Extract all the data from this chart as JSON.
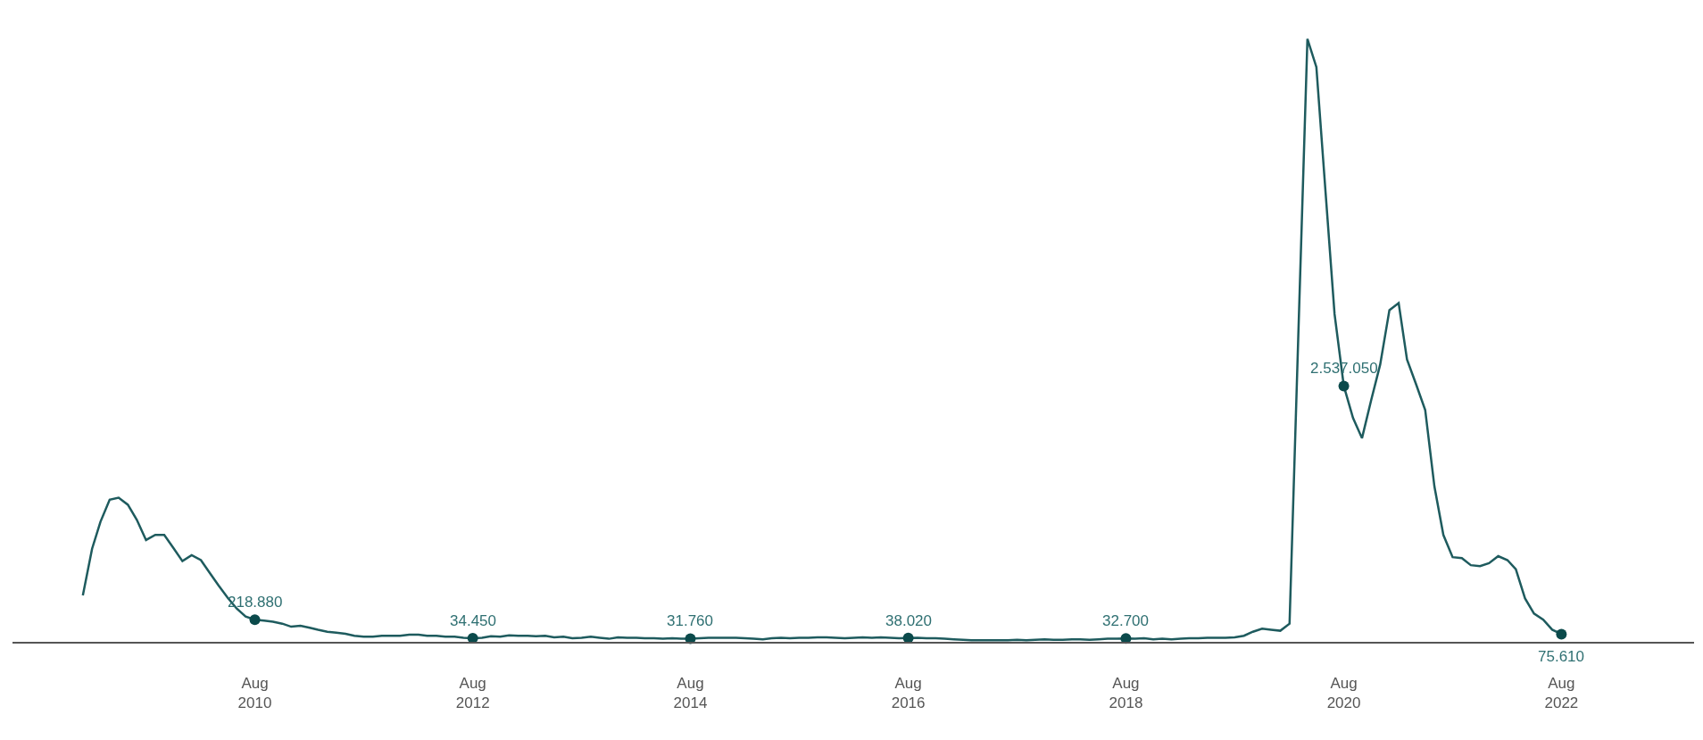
{
  "chart_data": {
    "type": "line",
    "x": [
      "2009-01",
      "2009-02",
      "2009-03",
      "2009-04",
      "2009-05",
      "2009-06",
      "2009-07",
      "2009-08",
      "2009-09",
      "2009-10",
      "2009-11",
      "2009-12",
      "2010-01",
      "2010-02",
      "2010-03",
      "2010-04",
      "2010-05",
      "2010-06",
      "2010-07",
      "2010-08",
      "2010-09",
      "2010-10",
      "2010-11",
      "2010-12",
      "2011-01",
      "2011-02",
      "2011-03",
      "2011-04",
      "2011-05",
      "2011-06",
      "2011-07",
      "2011-08",
      "2011-09",
      "2011-10",
      "2011-11",
      "2011-12",
      "2012-01",
      "2012-02",
      "2012-03",
      "2012-04",
      "2012-05",
      "2012-06",
      "2012-07",
      "2012-08",
      "2012-09",
      "2012-10",
      "2012-11",
      "2012-12",
      "2013-01",
      "2013-02",
      "2013-03",
      "2013-04",
      "2013-05",
      "2013-06",
      "2013-07",
      "2013-08",
      "2013-09",
      "2013-10",
      "2013-11",
      "2013-12",
      "2014-01",
      "2014-02",
      "2014-03",
      "2014-04",
      "2014-05",
      "2014-06",
      "2014-07",
      "2014-08",
      "2014-09",
      "2014-10",
      "2014-11",
      "2014-12",
      "2015-01",
      "2015-02",
      "2015-03",
      "2015-04",
      "2015-05",
      "2015-06",
      "2015-07",
      "2015-08",
      "2015-09",
      "2015-10",
      "2015-11",
      "2015-12",
      "2016-01",
      "2016-02",
      "2016-03",
      "2016-04",
      "2016-05",
      "2016-06",
      "2016-07",
      "2016-08",
      "2016-09",
      "2016-10",
      "2016-11",
      "2016-12",
      "2017-01",
      "2017-02",
      "2017-03",
      "2017-04",
      "2017-05",
      "2017-06",
      "2017-07",
      "2017-08",
      "2017-09",
      "2017-10",
      "2017-11",
      "2017-12",
      "2018-01",
      "2018-02",
      "2018-03",
      "2018-04",
      "2018-05",
      "2018-06",
      "2018-07",
      "2018-08",
      "2018-09",
      "2018-10",
      "2018-11",
      "2018-12",
      "2019-01",
      "2019-02",
      "2019-03",
      "2019-04",
      "2019-05",
      "2019-06",
      "2019-07",
      "2019-08",
      "2019-09",
      "2019-10",
      "2019-11",
      "2019-12",
      "2020-01",
      "2020-02",
      "2020-03",
      "2020-04",
      "2020-05",
      "2020-06",
      "2020-07",
      "2020-08",
      "2020-09",
      "2020-10",
      "2020-11",
      "2020-12",
      "2021-01",
      "2021-02",
      "2021-03",
      "2021-04",
      "2021-05",
      "2021-06",
      "2021-07",
      "2021-08",
      "2021-09",
      "2021-10",
      "2021-11",
      "2021-12",
      "2022-01",
      "2022-02",
      "2022-03",
      "2022-04",
      "2022-05",
      "2022-06",
      "2022-07",
      "2022-08"
    ],
    "series": [
      {
        "color": "#1e5b5e",
        "values": [
          461000,
          923000,
          1190000,
          1410000,
          1430000,
          1360000,
          1210000,
          1010000,
          1060000,
          1060000,
          930000,
          800000,
          860000,
          810000,
          690000,
          560000,
          440000,
          330000,
          250000,
          218880,
          210000,
          200000,
          180000,
          150000,
          160000,
          140000,
          120000,
          100000,
          90000,
          80000,
          60000,
          50000,
          50000,
          60000,
          60000,
          60000,
          70000,
          70000,
          60000,
          60000,
          50000,
          50000,
          40000,
          34450,
          40000,
          55000,
          50000,
          65000,
          60000,
          60000,
          55000,
          60000,
          45000,
          50000,
          35000,
          40000,
          50000,
          40000,
          30000,
          45000,
          40000,
          40000,
          35000,
          35000,
          30000,
          35000,
          30000,
          31760,
          35000,
          40000,
          40000,
          40000,
          40000,
          35000,
          30000,
          25000,
          35000,
          40000,
          35000,
          40000,
          40000,
          45000,
          45000,
          40000,
          35000,
          40000,
          45000,
          40000,
          45000,
          40000,
          35000,
          38020,
          40000,
          35000,
          35000,
          30000,
          25000,
          20000,
          15000,
          15000,
          15000,
          15000,
          15000,
          20000,
          15000,
          20000,
          25000,
          20000,
          20000,
          25000,
          25000,
          20000,
          25000,
          30000,
          30000,
          32700,
          30000,
          35000,
          25000,
          30000,
          25000,
          30000,
          35000,
          35000,
          40000,
          40000,
          40000,
          45000,
          60000,
          100000,
          130000,
          120000,
          110000,
          180000,
          3000000,
          5980000,
          5700000,
          4450000,
          3250000,
          2537050,
          2220000,
          2020000,
          2400000,
          2750000,
          3290000,
          3360000,
          2800000,
          2550000,
          2300000,
          1540000,
          1060000,
          840000,
          830000,
          760000,
          750000,
          780000,
          850000,
          810000,
          720000,
          430000,
          280000,
          220000,
          120000,
          75610
        ],
        "value_labels": [
          null,
          null,
          null,
          null,
          null,
          null,
          null,
          null,
          null,
          null,
          null,
          null,
          null,
          null,
          null,
          null,
          null,
          null,
          null,
          "218.880",
          null,
          null,
          null,
          null,
          null,
          null,
          null,
          null,
          null,
          null,
          null,
          null,
          null,
          null,
          null,
          null,
          null,
          null,
          null,
          null,
          null,
          null,
          null,
          "34.450",
          null,
          null,
          null,
          null,
          null,
          null,
          null,
          null,
          null,
          null,
          null,
          null,
          null,
          null,
          null,
          null,
          null,
          null,
          null,
          null,
          null,
          null,
          null,
          "31.760",
          null,
          null,
          null,
          null,
          null,
          null,
          null,
          null,
          null,
          null,
          null,
          null,
          null,
          null,
          null,
          null,
          null,
          null,
          null,
          null,
          null,
          null,
          null,
          "38.020",
          null,
          null,
          null,
          null,
          null,
          null,
          null,
          null,
          null,
          null,
          null,
          null,
          null,
          null,
          null,
          null,
          null,
          null,
          null,
          null,
          null,
          null,
          null,
          "32.700",
          null,
          null,
          null,
          null,
          null,
          null,
          null,
          null,
          null,
          null,
          null,
          null,
          null,
          null,
          null,
          null,
          null,
          null,
          null,
          null,
          null,
          null,
          null,
          "2.537.050",
          null,
          null,
          null,
          null,
          null,
          null,
          null,
          null,
          null,
          null,
          null,
          null,
          null,
          null,
          null,
          null,
          null,
          null,
          null,
          null,
          null,
          null,
          null,
          "75.610"
        ]
      }
    ],
    "xlim": [
      "2008-05-10",
      "2023-10-20"
    ],
    "xticks": [
      {
        "value": "2010-08",
        "label": "Aug\n2010"
      },
      {
        "value": "2012-08",
        "label": "Aug\n2012"
      },
      {
        "value": "2014-08",
        "label": "Aug\n2014"
      },
      {
        "value": "2016-08",
        "label": "Aug\n2016"
      },
      {
        "value": "2018-08",
        "label": "Aug\n2018"
      },
      {
        "value": "2020-08",
        "label": "Aug\n2020"
      },
      {
        "value": "2022-08",
        "label": "Aug\n2022"
      }
    ],
    "tick_labels": "x"
  }
}
